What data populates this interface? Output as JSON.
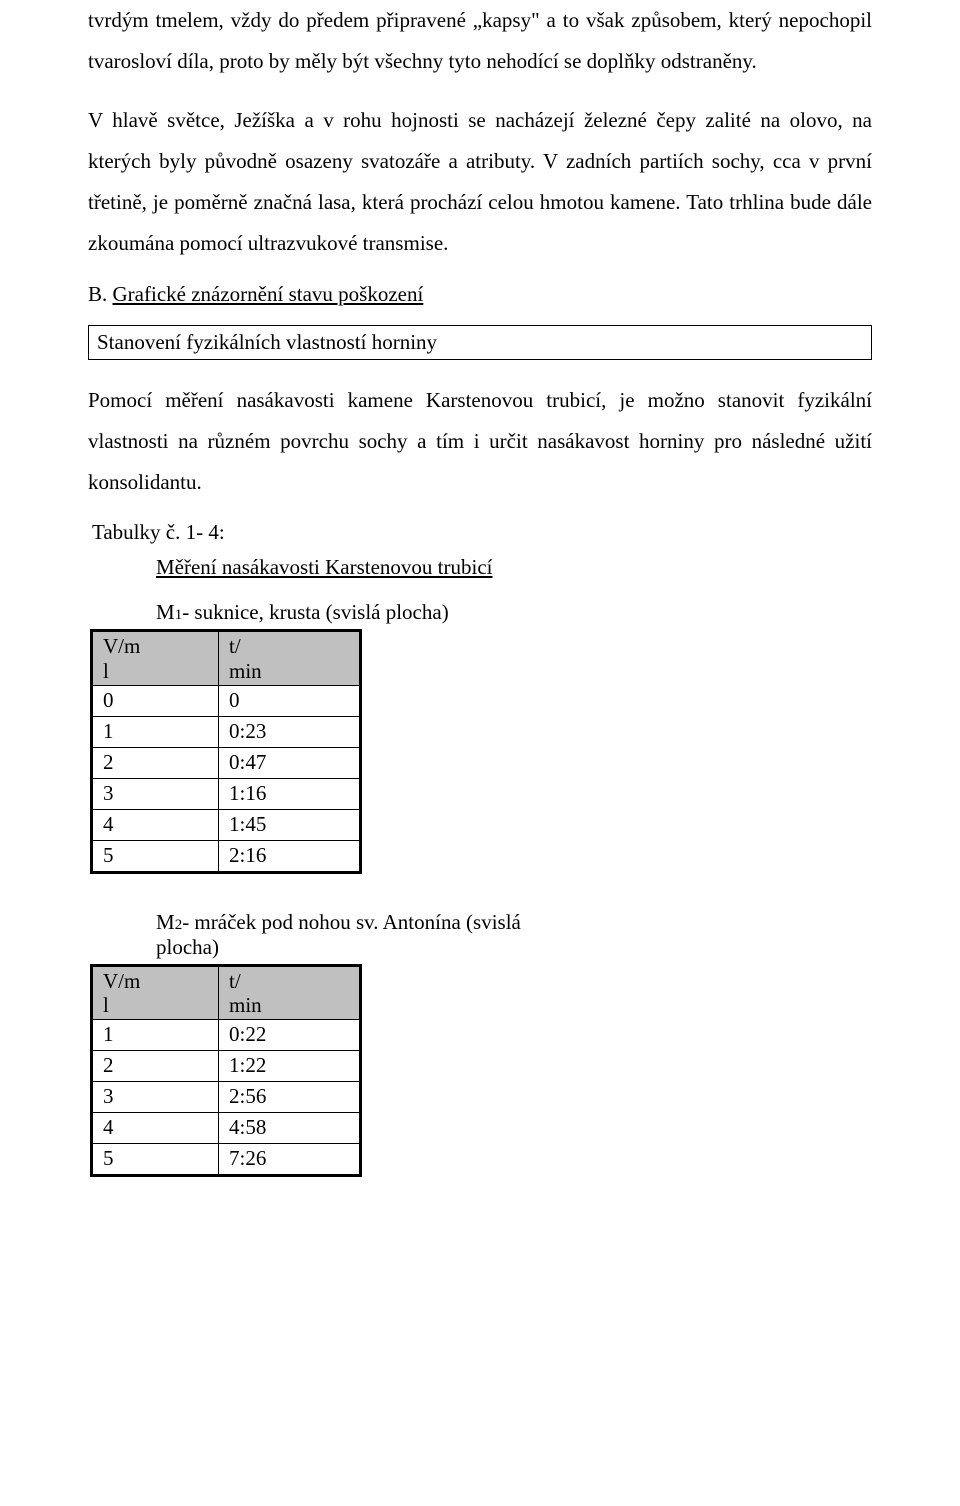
{
  "paragraph1": "tvrdým tmelem, vždy do předem připravené „kapsy\" a to však způsobem, který nepochopil tvarosloví díla, proto by měly být všechny tyto nehodící se doplňky odstraněny.",
  "paragraph2": "V hlavě světce, Ježíška a v rohu hojnosti se nacházejí železné čepy zalité na olovo, na kterých byly původně osazeny svatozáře a atributy. V zadních partiích sochy, cca v první třetině, je poměrně značná lasa, která prochází celou hmotou kamene. Tato trhlina bude dále zkoumána pomocí ultrazvukové transmise.",
  "sectionB_prefix": "B.  ",
  "sectionB_title": "Grafické znázornění stavu poškození",
  "boxed_heading": "Stanovení fyzikálních vlastností horniny",
  "paragraph3": "Pomocí měření nasákavosti kamene Karstenovou trubicí, je možno stanovit fyzikální vlastnosti na různém povrchu sochy a tím i určit nasákavost horniny pro následné užití konsolidantu.",
  "tables_label": "Tabulky č. 1- 4:",
  "measure_heading": "Měření nasákavosti Karstenovou trubicí",
  "table1": {
    "caption_prefix": "M",
    "caption_sub": "1",
    "caption_rest": "- suknice, krusta (svislá plocha)",
    "header_c1_l1": "V/m",
    "header_c1_l2": "l",
    "header_c2_l1": "t/",
    "header_c2_l2": "min",
    "rows": [
      [
        "0",
        "0"
      ],
      [
        "1",
        "0:23"
      ],
      [
        "2",
        "0:47"
      ],
      [
        "3",
        "1:16"
      ],
      [
        "4",
        "1:45"
      ],
      [
        "5",
        "2:16"
      ]
    ]
  },
  "table2": {
    "caption_prefix": "M",
    "caption_sub": "2",
    "caption_rest": "- mráček pod nohou sv. Antonína (svislá plocha)",
    "header_c1_l1": "V/m",
    "header_c1_l2": "l",
    "header_c2_l1": "t/",
    "header_c2_l2": "min",
    "rows": [
      [
        "1",
        "0:22"
      ],
      [
        "2",
        "1:22"
      ],
      [
        "3",
        "2:56"
      ],
      [
        "4",
        "4:58"
      ],
      [
        "5",
        "7:26"
      ]
    ]
  }
}
